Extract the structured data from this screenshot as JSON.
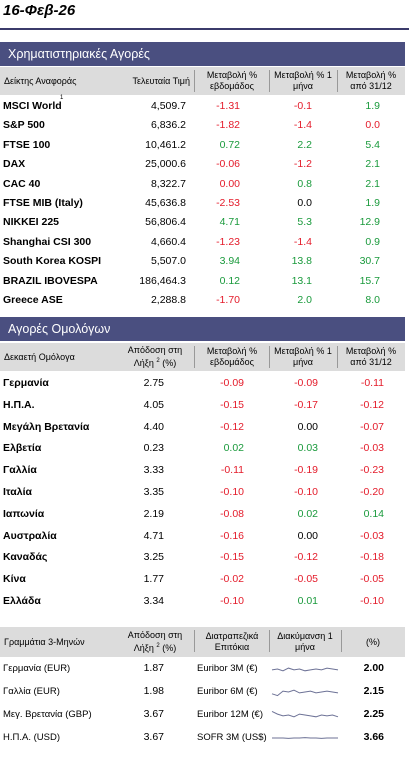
{
  "date": "16-Φεβ-26",
  "equity": {
    "title": "Χρηματιστηριακές Αγορές",
    "headers": {
      "index": "Δείκτης Αναφοράς",
      "last": "Τελευταία Τιμή",
      "week": "Μεταβολή % εβδομάδος",
      "month": "Μεταβολή % 1 μήνα",
      "ytd": "Μεταβολή % από 31/12"
    },
    "rows": [
      {
        "name": "MSCI World",
        "sup": "1",
        "last": "4,509.7",
        "week": "-1.31",
        "month": "-0.1",
        "ytd": "1.9"
      },
      {
        "name": "S&P 500",
        "last": "6,836.2",
        "week": "-1.82",
        "month": "-1.4",
        "ytd": "0.0"
      },
      {
        "name": "FTSE 100",
        "last": "10,461.2",
        "week": "0.72",
        "month": "2.2",
        "ytd": "5.4"
      },
      {
        "name": "DAX",
        "last": "25,000.6",
        "week": "-0.06",
        "month": "-1.2",
        "ytd": "2.1"
      },
      {
        "name": "CAC 40",
        "last": "8,322.7",
        "week": "0.00",
        "month": "0.8",
        "ytd": "2.1"
      },
      {
        "name": "FTSE MIB (Italy)",
        "last": "45,636.8",
        "week": "-2.53",
        "month": "0.0",
        "ytd": "1.9"
      },
      {
        "name": "NIKKEI 225",
        "last": "56,806.4",
        "week": "4.71",
        "month": "5.3",
        "ytd": "12.9"
      },
      {
        "name": "Shanghai CSI 300",
        "last": "4,660.4",
        "week": "-1.23",
        "month": "-1.4",
        "ytd": "0.9"
      },
      {
        "name": "South Korea KOSPI",
        "last": "5,507.0",
        "week": "3.94",
        "month": "13.8",
        "ytd": "30.7"
      },
      {
        "name": "BRAZIL IBOVESPA",
        "last": "186,464.3",
        "week": "0.12",
        "month": "13.1",
        "ytd": "15.7"
      },
      {
        "name": "Greece ASE",
        "last": "2,288.8",
        "week": "-1.70",
        "month": "2.0",
        "ytd": "8.0"
      }
    ]
  },
  "bonds": {
    "title": "Αγορές Ομολόγων",
    "headers": {
      "name": "Δεκαετή Ομόλογα",
      "yield": "Απόδοση στη Λήξη",
      "yield_sup": "2",
      "yield_unit": "(%)",
      "week": "Μεταβολή % εβδομάδος",
      "month": "Μεταβολή % 1 μήνα",
      "ytd": "Μεταβολή % από 31/12"
    },
    "rows": [
      {
        "name": "Γερμανία",
        "yield": "2.75",
        "week": "-0.09",
        "month": "-0.09",
        "ytd": "-0.11"
      },
      {
        "name": "Η.Π.Α.",
        "yield": "4.05",
        "week": "-0.15",
        "month": "-0.17",
        "ytd": "-0.12"
      },
      {
        "name": "Μεγάλη Βρετανία",
        "yield": "4.40",
        "week": "-0.12",
        "month": "0.00",
        "ytd": "-0.07"
      },
      {
        "name": "Ελβετία",
        "yield": "0.23",
        "week": "0.02",
        "month": "0.03",
        "ytd": "-0.03"
      },
      {
        "name": "Γαλλία",
        "yield": "3.33",
        "week": "-0.11",
        "month": "-0.19",
        "ytd": "-0.23"
      },
      {
        "name": "Ιταλία",
        "yield": "3.35",
        "week": "-0.10",
        "month": "-0.10",
        "ytd": "-0.20"
      },
      {
        "name": "Ιαπωνία",
        "yield": "2.19",
        "week": "-0.08",
        "month": "0.02",
        "ytd": "0.14"
      },
      {
        "name": "Αυστραλία",
        "yield": "4.71",
        "week": "-0.16",
        "month": "0.00",
        "ytd": "-0.03"
      },
      {
        "name": "Καναδάς",
        "yield": "3.25",
        "week": "-0.15",
        "month": "-0.12",
        "ytd": "-0.18"
      },
      {
        "name": "Κίνα",
        "yield": "1.77",
        "week": "-0.02",
        "month": "-0.05",
        "ytd": "-0.05"
      },
      {
        "name": "Ελλάδα",
        "yield": "3.34",
        "week": "-0.10",
        "month": "0.01",
        "ytd": "-0.10"
      }
    ]
  },
  "bills": {
    "headers": {
      "name": "Γραμμάτια 3-Μηνών",
      "yield": "Απόδοση στη Λήξη",
      "yield_sup": "2",
      "yield_unit": "(%)",
      "rates": "Διατραπεζικά Επιτόκια",
      "trend": "Διακύμανση 1 μήνα",
      "pct": "(%)"
    },
    "rows": [
      {
        "name": "Γερμανία (EUR)",
        "yield": "1.87",
        "rate_name": "Euribor 3M (€)",
        "rate": "2.00"
      },
      {
        "name": "Γαλλία (EUR)",
        "yield": "1.98",
        "rate_name": "Euribor 6M (€)",
        "rate": "2.15"
      },
      {
        "name": "Μεγ. Βρετανία (GBP)",
        "yield": "3.67",
        "rate_name": "Euribor 12M (€)",
        "rate": "2.25"
      },
      {
        "name": "Η.Π.Α. (USD)",
        "yield": "3.67",
        "rate_name": "SOFR 3M (US$)",
        "rate": "3.66"
      }
    ]
  },
  "colors": {
    "negative": "#e41b2a",
    "positive": "#1a9a3c",
    "header_bar": "#4a4f80",
    "subheader": "#dcdcdc"
  }
}
